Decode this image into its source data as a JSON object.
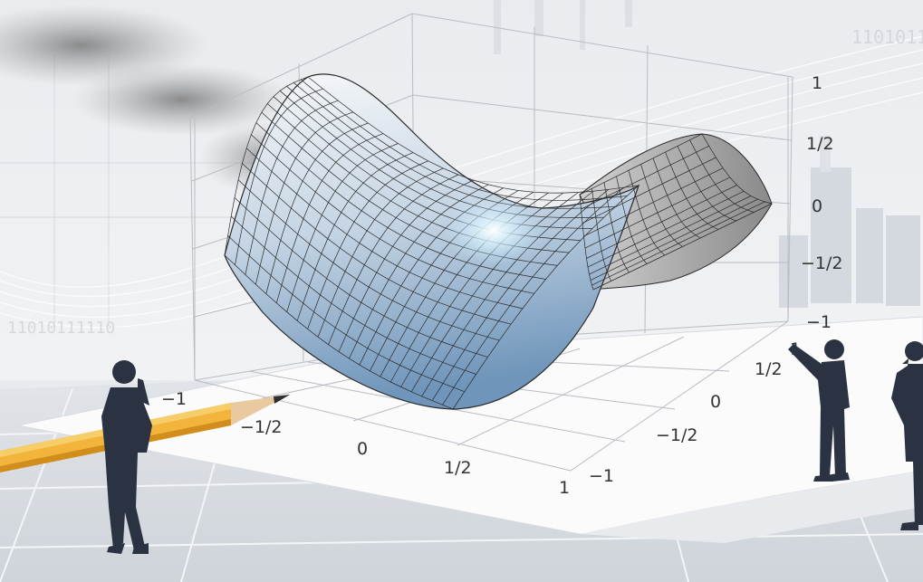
{
  "colors": {
    "background": "#e7eaee",
    "surface_light": "#f4f6f9",
    "surface_blue": "#8fb0ce",
    "surface_gray": "#9a9a9a",
    "pencil": "#f2b43a",
    "silhouette": "#2b3342"
  },
  "axes": {
    "z_ticks": [
      "1",
      "1/2",
      "0",
      "−1/2",
      "−1"
    ],
    "x_ticks": [
      "−1",
      "−1/2",
      "0",
      "1/2",
      "1"
    ],
    "y_ticks": [
      "1",
      "1/2",
      "0",
      "−1/2",
      "−1"
    ]
  },
  "decor": {
    "binary_top": "1101011",
    "binary_left": "11010111110"
  },
  "icons": [
    "pencil-icon",
    "businessman-thinking-icon",
    "businessman-pointing-icon",
    "businessman-phone-icon"
  ]
}
